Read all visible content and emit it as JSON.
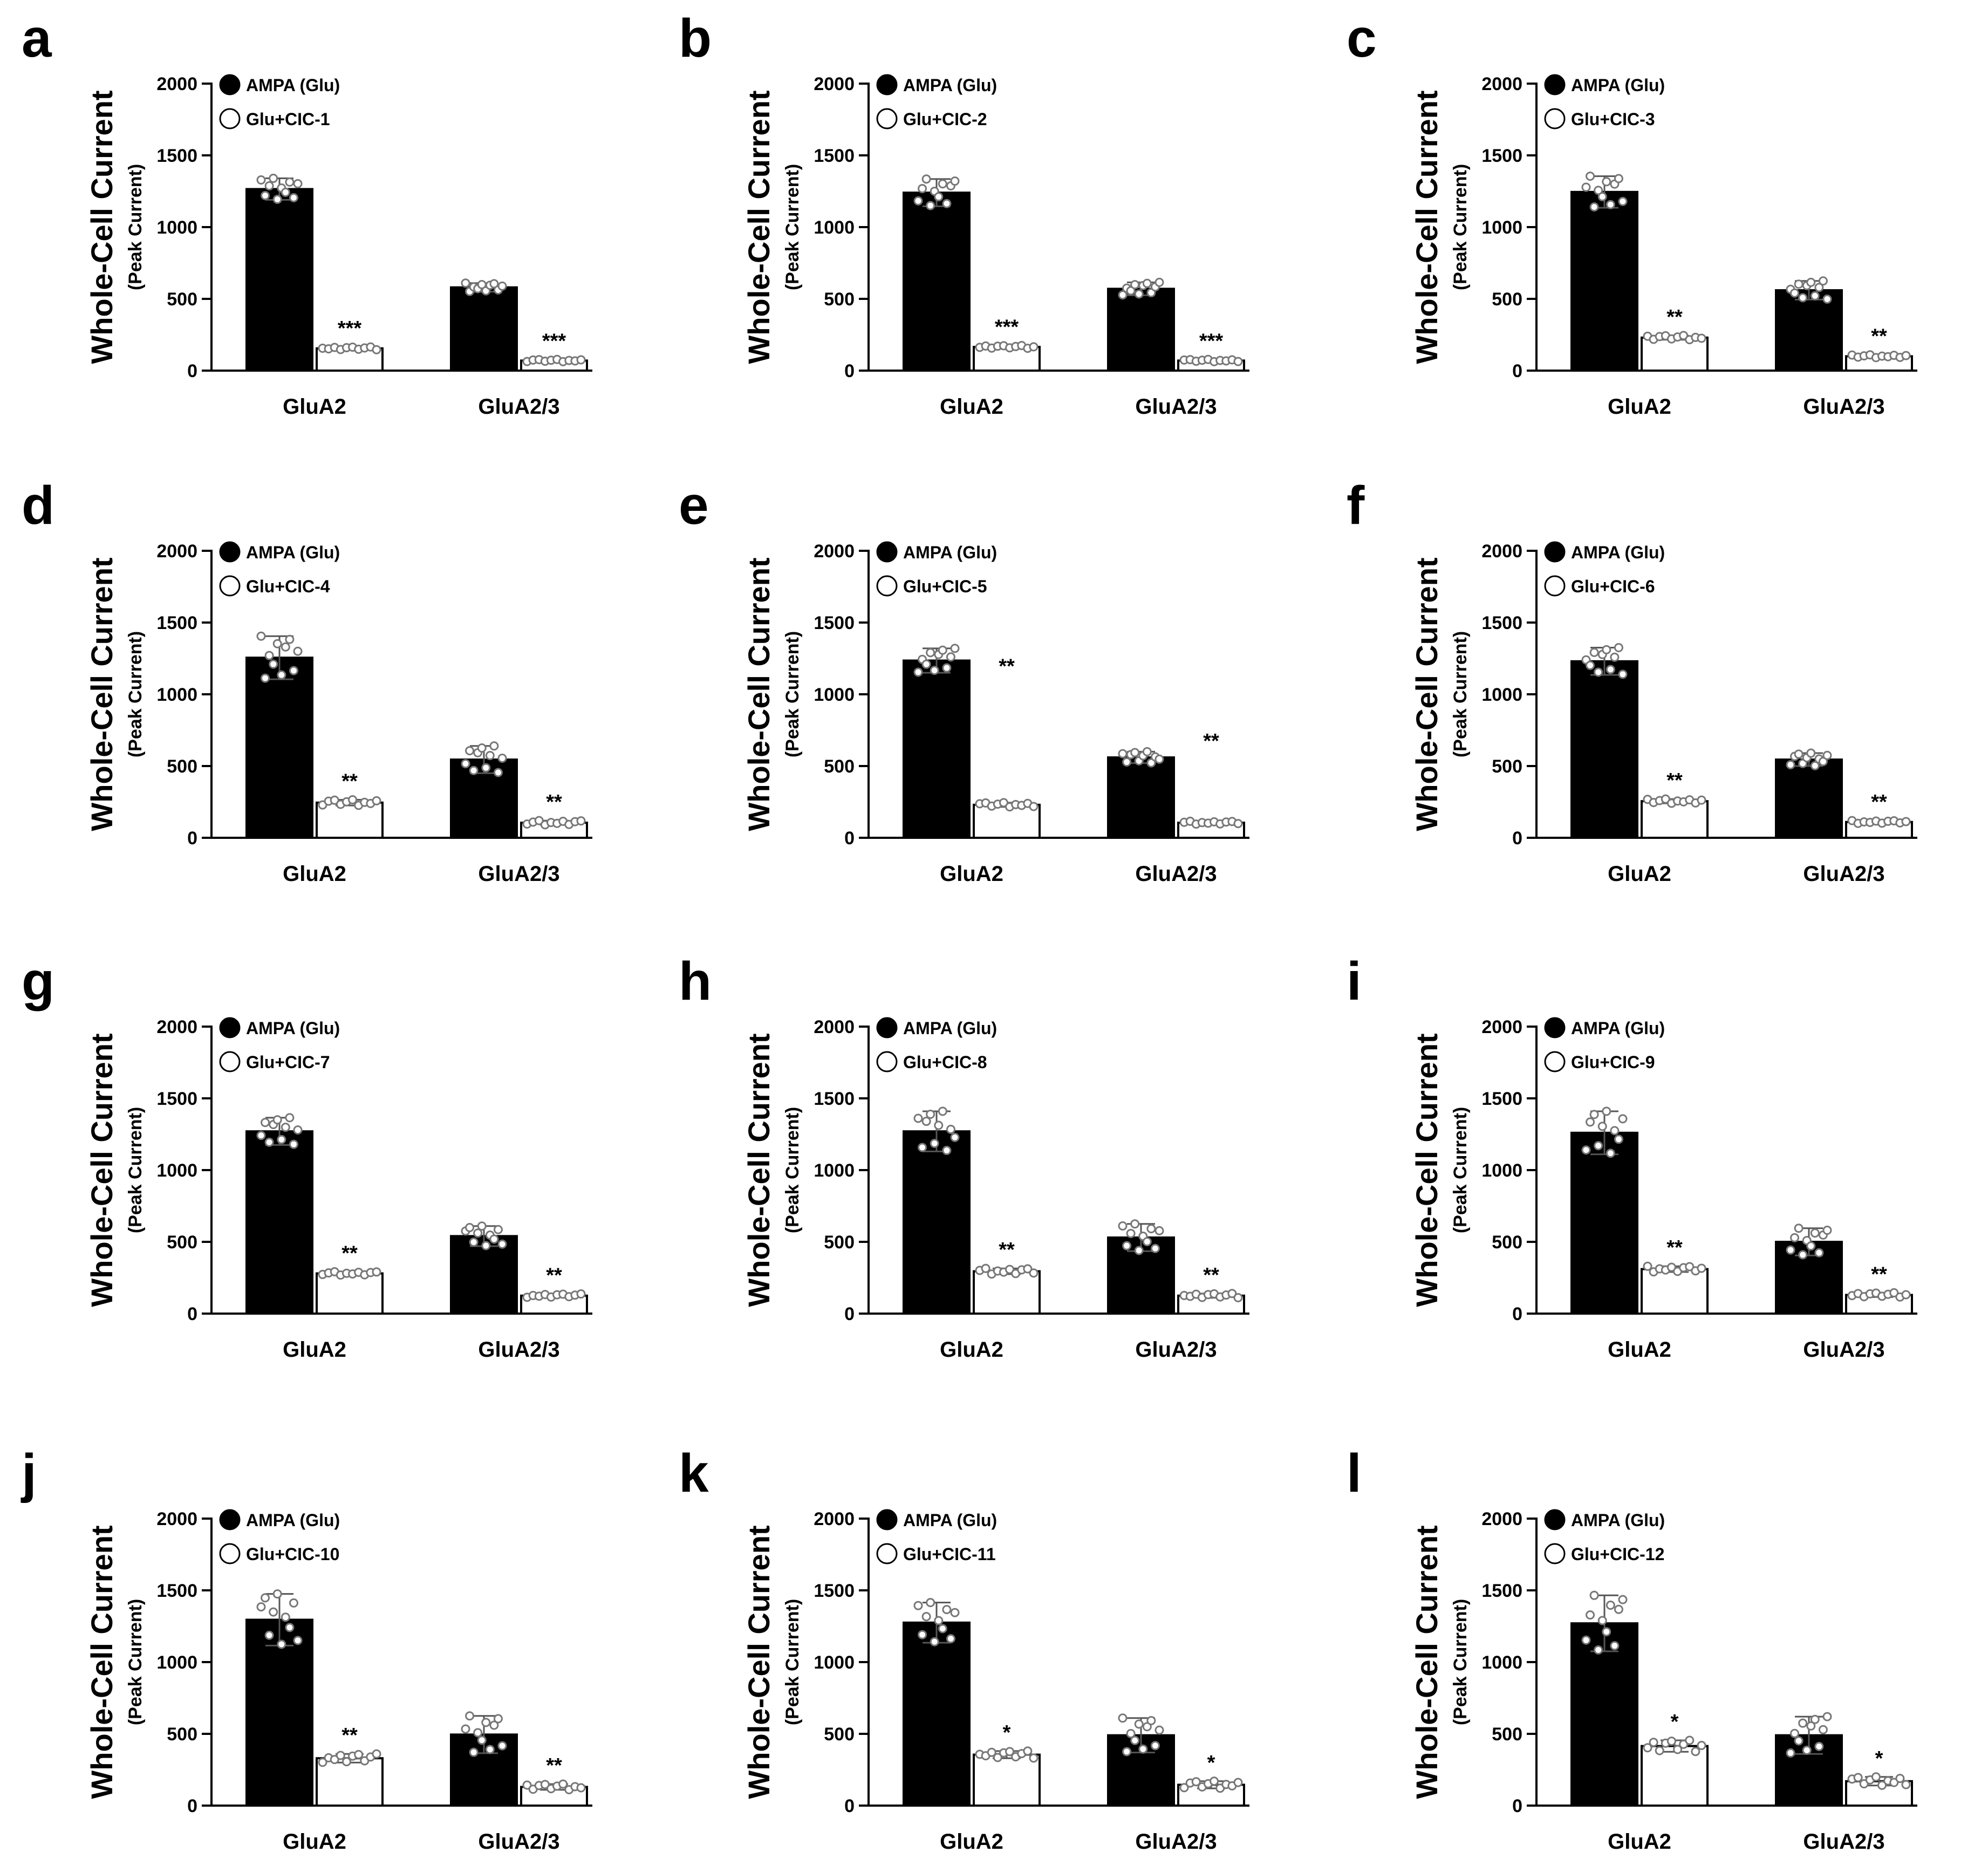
{
  "figure": {
    "y_label_main": "Whole-Cell Current",
    "y_label_sub": "(Peak Current)",
    "colors": {
      "control_bar": "#000000",
      "treated_bar": "#ffffff",
      "points": "#777777",
      "axis": "#000000"
    }
  },
  "chart_data": [
    {
      "panel": "a",
      "type": "bar",
      "categories": [
        "GluA2",
        "GluA2/3"
      ],
      "ylim": [
        0,
        2000
      ],
      "yticks": [
        0,
        500,
        1000,
        1500,
        2000
      ],
      "series": [
        {
          "name": "AMPA (Glu)",
          "values": [
            1265,
            580
          ],
          "sd": [
            75,
            30
          ]
        },
        {
          "name": "Glu+CIC-1",
          "values": [
            155,
            70
          ],
          "sd": [
            10,
            8
          ]
        }
      ],
      "significance": [
        "***",
        "***"
      ]
    },
    {
      "panel": "b",
      "type": "bar",
      "categories": [
        "GluA2",
        "GluA2/3"
      ],
      "ylim": [
        0,
        2000
      ],
      "yticks": [
        0,
        500,
        1000,
        1500,
        2000
      ],
      "series": [
        {
          "name": "AMPA (Glu)",
          "values": [
            1240,
            570
          ],
          "sd": [
            95,
            45
          ]
        },
        {
          "name": "Glu+CIC-2",
          "values": [
            165,
            70
          ],
          "sd": [
            10,
            8
          ]
        }
      ],
      "significance": [
        "***",
        "***"
      ]
    },
    {
      "panel": "c",
      "type": "bar",
      "categories": [
        "GluA2",
        "GluA2/3"
      ],
      "ylim": [
        0,
        2000
      ],
      "yticks": [
        0,
        500,
        1000,
        1500,
        2000
      ],
      "series": [
        {
          "name": "AMPA (Glu)",
          "values": [
            1245,
            560
          ],
          "sd": [
            110,
            65
          ]
        },
        {
          "name": "Glu+CIC-3",
          "values": [
            230,
            100
          ],
          "sd": [
            15,
            10
          ]
        }
      ],
      "significance": [
        "**",
        "**"
      ]
    },
    {
      "panel": "d",
      "type": "bar",
      "categories": [
        "GluA2",
        "GluA2/3"
      ],
      "ylim": [
        0,
        2000
      ],
      "yticks": [
        0,
        500,
        1000,
        1500,
        2000
      ],
      "series": [
        {
          "name": "AMPA (Glu)",
          "values": [
            1255,
            545
          ],
          "sd": [
            150,
            95
          ]
        },
        {
          "name": "Glu+CIC-4",
          "values": [
            245,
            105
          ],
          "sd": [
            20,
            15
          ]
        }
      ],
      "significance": [
        "**",
        "**"
      ]
    },
    {
      "panel": "e",
      "type": "bar",
      "categories": [
        "GluA2",
        "GluA2/3"
      ],
      "ylim": [
        0,
        2000
      ],
      "yticks": [
        0,
        500,
        1000,
        1500,
        2000
      ],
      "series": [
        {
          "name": "AMPA (Glu)",
          "values": [
            1235,
            560
          ],
          "sd": [
            85,
            40
          ]
        },
        {
          "name": "Glu+CIC-5",
          "values": [
            230,
            105
          ],
          "sd": [
            15,
            10
          ]
        }
      ],
      "significance": [
        "**",
        "**"
      ]
    },
    {
      "panel": "f",
      "type": "bar",
      "categories": [
        "GluA2",
        "GluA2/3"
      ],
      "ylim": [
        0,
        2000
      ],
      "yticks": [
        0,
        500,
        1000,
        1500,
        2000
      ],
      "series": [
        {
          "name": "AMPA (Glu)",
          "values": [
            1230,
            545
          ],
          "sd": [
            95,
            45
          ]
        },
        {
          "name": "Glu+CIC-6",
          "values": [
            255,
            110
          ],
          "sd": [
            15,
            10
          ]
        }
      ],
      "significance": [
        "**",
        "**"
      ]
    },
    {
      "panel": "g",
      "type": "bar",
      "categories": [
        "GluA2",
        "GluA2/3"
      ],
      "ylim": [
        0,
        2000
      ],
      "yticks": [
        0,
        500,
        1000,
        1500,
        2000
      ],
      "series": [
        {
          "name": "AMPA (Glu)",
          "values": [
            1270,
            540
          ],
          "sd": [
            95,
            70
          ]
        },
        {
          "name": "Glu+CIC-7",
          "values": [
            280,
            125
          ],
          "sd": [
            12,
            12
          ]
        }
      ],
      "significance": [
        "**",
        "**"
      ]
    },
    {
      "panel": "h",
      "type": "bar",
      "categories": [
        "GluA2",
        "GluA2/3"
      ],
      "ylim": [
        0,
        2000
      ],
      "yticks": [
        0,
        500,
        1000,
        1500,
        2000
      ],
      "series": [
        {
          "name": "AMPA (Glu)",
          "values": [
            1270,
            530
          ],
          "sd": [
            140,
            95
          ]
        },
        {
          "name": "Glu+CIC-8",
          "values": [
            295,
            125
          ],
          "sd": [
            20,
            15
          ]
        }
      ],
      "significance": [
        "**",
        "**"
      ]
    },
    {
      "panel": "i",
      "type": "bar",
      "categories": [
        "GluA2",
        "GluA2/3"
      ],
      "ylim": [
        0,
        2000
      ],
      "yticks": [
        0,
        500,
        1000,
        1500,
        2000
      ],
      "series": [
        {
          "name": "AMPA (Glu)",
          "values": [
            1260,
            500
          ],
          "sd": [
            150,
            95
          ]
        },
        {
          "name": "Glu+CIC-9",
          "values": [
            310,
            130
          ],
          "sd": [
            20,
            15
          ]
        }
      ],
      "significance": [
        "**",
        "**"
      ]
    },
    {
      "panel": "j",
      "type": "bar",
      "categories": [
        "GluA2",
        "GluA2/3"
      ],
      "ylim": [
        0,
        2000
      ],
      "yticks": [
        0,
        500,
        1000,
        1500,
        2000
      ],
      "series": [
        {
          "name": "AMPA (Glu)",
          "values": [
            1295,
            495
          ],
          "sd": [
            180,
            130
          ]
        },
        {
          "name": "Glu+CIC-10",
          "values": [
            330,
            130
          ],
          "sd": [
            30,
            20
          ]
        }
      ],
      "significance": [
        "**",
        "**"
      ]
    },
    {
      "panel": "k",
      "type": "bar",
      "categories": [
        "GluA2",
        "GluA2/3"
      ],
      "ylim": [
        0,
        2000
      ],
      "yticks": [
        0,
        500,
        1000,
        1500,
        2000
      ],
      "series": [
        {
          "name": "AMPA (Glu)",
          "values": [
            1275,
            490
          ],
          "sd": [
            140,
            120
          ]
        },
        {
          "name": "Glu+CIC-11",
          "values": [
            355,
            145
          ],
          "sd": [
            25,
            25
          ]
        }
      ],
      "significance": [
        "*",
        "*"
      ]
    },
    {
      "panel": "l",
      "type": "bar",
      "categories": [
        "GluA2",
        "GluA2/3"
      ],
      "ylim": [
        0,
        2000
      ],
      "yticks": [
        0,
        500,
        1000,
        1500,
        2000
      ],
      "series": [
        {
          "name": "AMPA (Glu)",
          "values": [
            1270,
            490
          ],
          "sd": [
            195,
            130
          ]
        },
        {
          "name": "Glu+CIC-12",
          "values": [
            415,
            170
          ],
          "sd": [
            40,
            30
          ]
        }
      ],
      "significance": [
        "*",
        "*"
      ]
    }
  ]
}
